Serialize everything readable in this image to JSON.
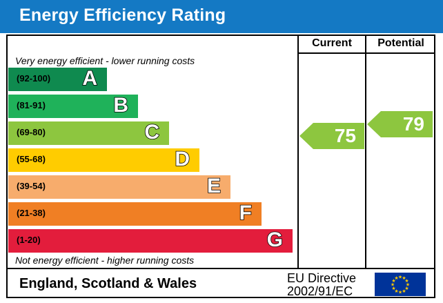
{
  "title": "Energy Efficiency Rating",
  "columns": {
    "current": "Current",
    "potential": "Potential"
  },
  "top_note": "Very energy efficient - lower running costs",
  "bottom_note": "Not energy efficient - higher running costs",
  "footer": {
    "region": "England, Scotland & Wales",
    "directive_line1": "EU Directive",
    "directive_line2": "2002/91/EC"
  },
  "chart_data": {
    "type": "bar",
    "title": "Energy Efficiency Rating",
    "categories": [
      "A",
      "B",
      "C",
      "D",
      "E",
      "F",
      "G"
    ],
    "bands": [
      {
        "letter": "A",
        "range": "(92-100)",
        "min": 92,
        "max": 100,
        "color": "#0f8a4f"
      },
      {
        "letter": "B",
        "range": "(81-91)",
        "min": 81,
        "max": 91,
        "color": "#1fb25a"
      },
      {
        "letter": "C",
        "range": "(69-80)",
        "min": 69,
        "max": 80,
        "color": "#8dc63f"
      },
      {
        "letter": "D",
        "range": "(55-68)",
        "min": 55,
        "max": 68,
        "color": "#ffcc00"
      },
      {
        "letter": "E",
        "range": "(39-54)",
        "min": 39,
        "max": 54,
        "color": "#f7ac6c"
      },
      {
        "letter": "F",
        "range": "(21-38)",
        "min": 21,
        "max": 38,
        "color": "#f07f24"
      },
      {
        "letter": "G",
        "range": "(1-20)",
        "min": 1,
        "max": 20,
        "color": "#e31d3c"
      }
    ],
    "series": [
      {
        "name": "Current",
        "value": 75,
        "band": "C",
        "color": "#8dc63f"
      },
      {
        "name": "Potential",
        "value": 79,
        "band": "C",
        "color": "#8dc63f"
      }
    ]
  }
}
